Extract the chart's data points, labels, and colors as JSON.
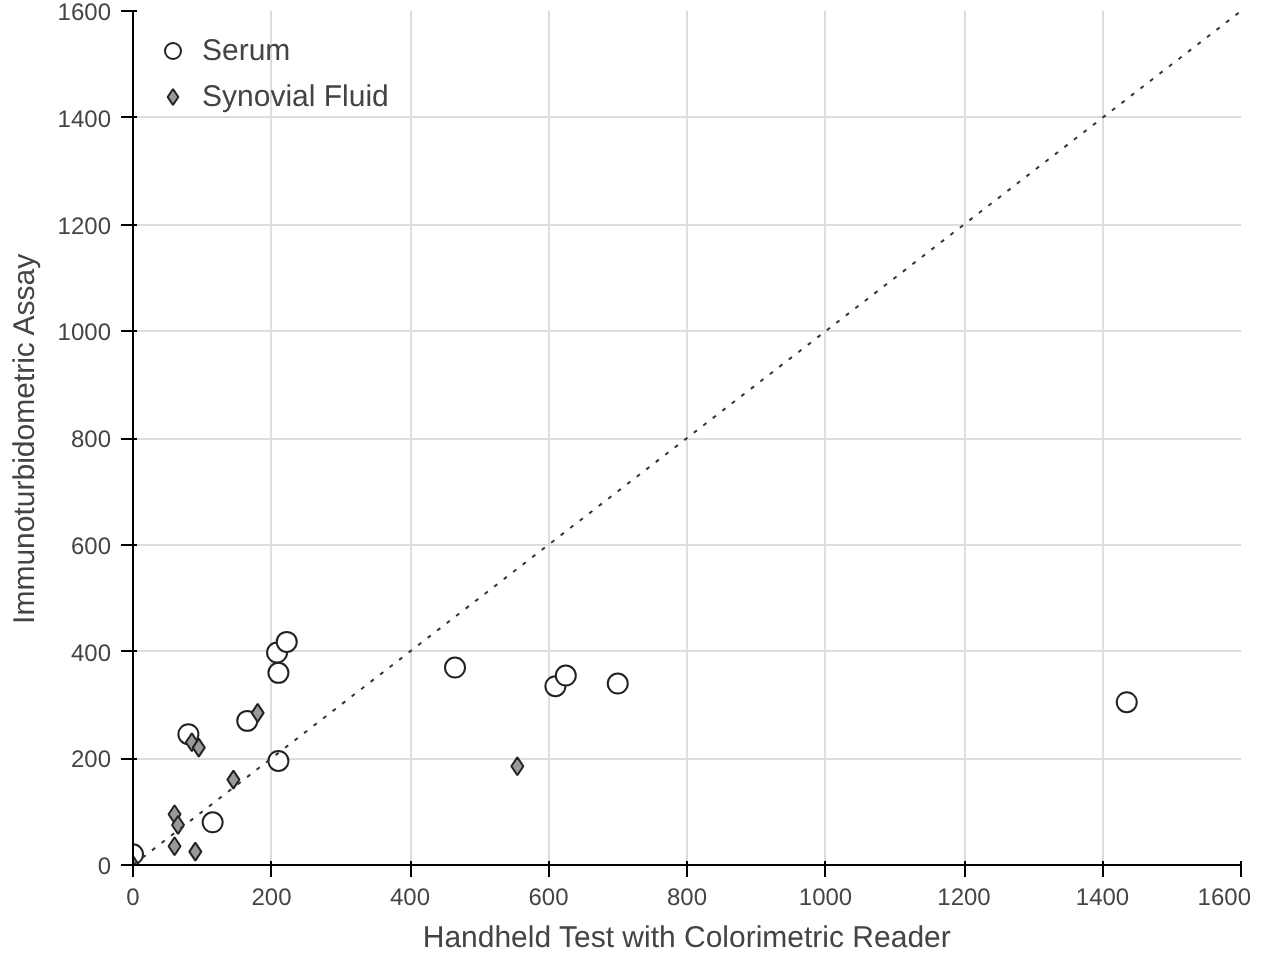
{
  "chart_data": {
    "type": "scatter",
    "xlabel": "Handheld Test with Colorimetric Reader",
    "ylabel": "Immunoturbidometric Assay",
    "xlim": [
      0,
      1600
    ],
    "ylim": [
      0,
      1600
    ],
    "xticks": [
      0,
      200,
      400,
      600,
      800,
      1000,
      1200,
      1400,
      1600
    ],
    "yticks": [
      0,
      200,
      400,
      600,
      800,
      1000,
      1200,
      1400,
      1600
    ],
    "grid": true,
    "legend": "top left",
    "series": [
      {
        "name": "Serum",
        "color": "#ffffff",
        "marker": "circle",
        "x": [
          0,
          80,
          115,
          165,
          210,
          208,
          222,
          210,
          465,
          610,
          625,
          700,
          1435
        ],
        "values": [
          20,
          245,
          80,
          270,
          360,
          398,
          418,
          195,
          370,
          335,
          355,
          340,
          305
        ]
      },
      {
        "name": "Synovial Fluid",
        "color": "#999999",
        "marker": "diamond",
        "x": [
          0,
          60,
          65,
          60,
          90,
          85,
          95,
          145,
          180,
          555
        ],
        "values": [
          0,
          95,
          75,
          35,
          25,
          230,
          220,
          160,
          285,
          185
        ]
      },
      {
        "type": "line",
        "color": "#333333",
        "line_style": "dotted",
        "x": [
          0,
          1600
        ],
        "values": [
          0,
          1600
        ]
      }
    ]
  }
}
